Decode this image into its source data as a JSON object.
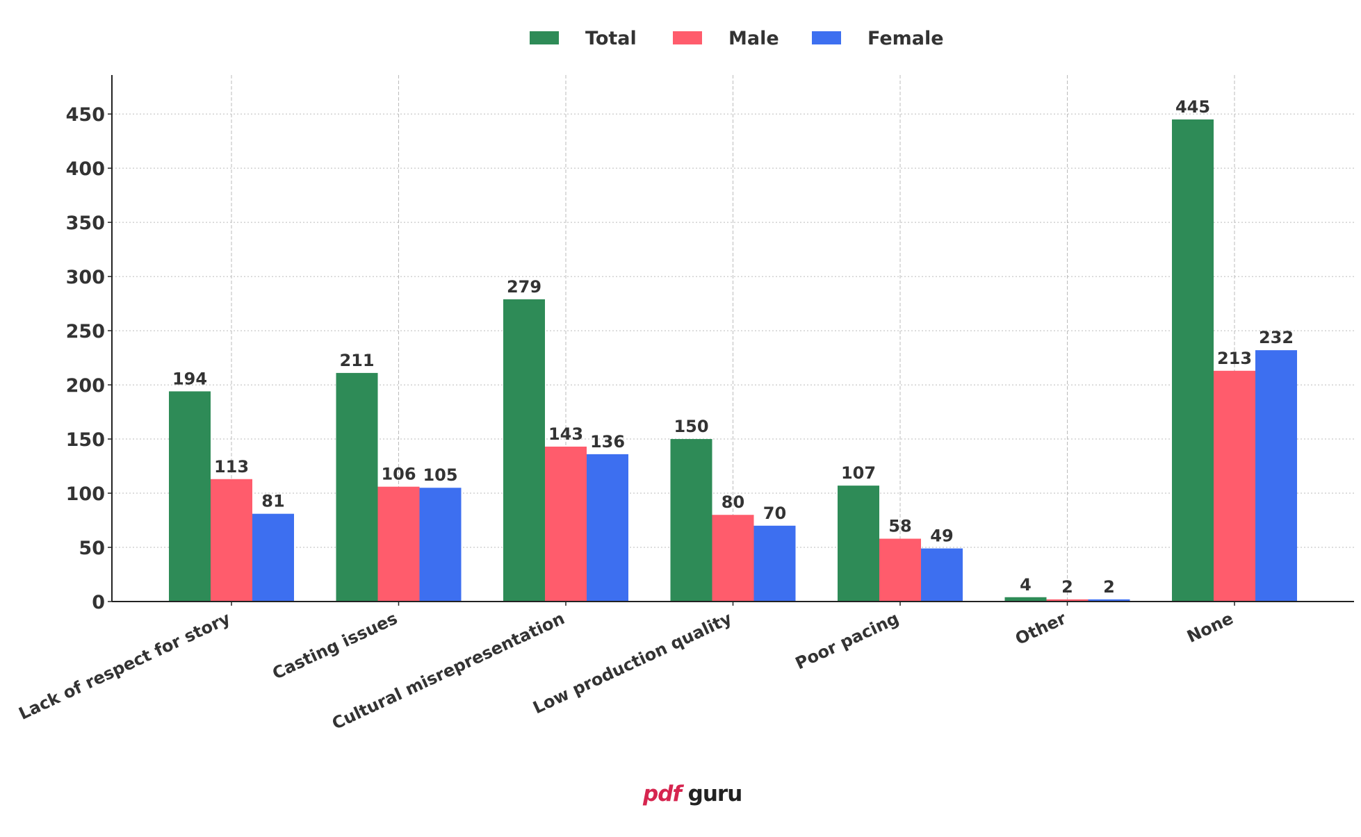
{
  "chart_data": {
    "type": "bar",
    "categories": [
      "Lack of respect for story",
      "Casting issues",
      "Cultural misrepresentation",
      "Low production quality",
      "Poor pacing",
      "Other",
      "None"
    ],
    "series": [
      {
        "name": "Total",
        "color": "#2e8b57",
        "values": [
          194,
          211,
          279,
          150,
          107,
          4,
          445
        ]
      },
      {
        "name": "Male",
        "color": "#ff5c6c",
        "values": [
          113,
          106,
          143,
          80,
          58,
          2,
          213
        ]
      },
      {
        "name": "Female",
        "color": "#3d6ff0",
        "values": [
          81,
          105,
          136,
          70,
          49,
          2,
          232
        ]
      }
    ],
    "ylim": [
      0,
      486
    ],
    "yticks": [
      0,
      50,
      100,
      150,
      200,
      250,
      300,
      350,
      400,
      450
    ],
    "grid": true,
    "legend": "top-center",
    "title": "",
    "xlabel": "",
    "ylabel": ""
  },
  "watermark": {
    "part1": "pdf",
    "part2": "guru"
  }
}
